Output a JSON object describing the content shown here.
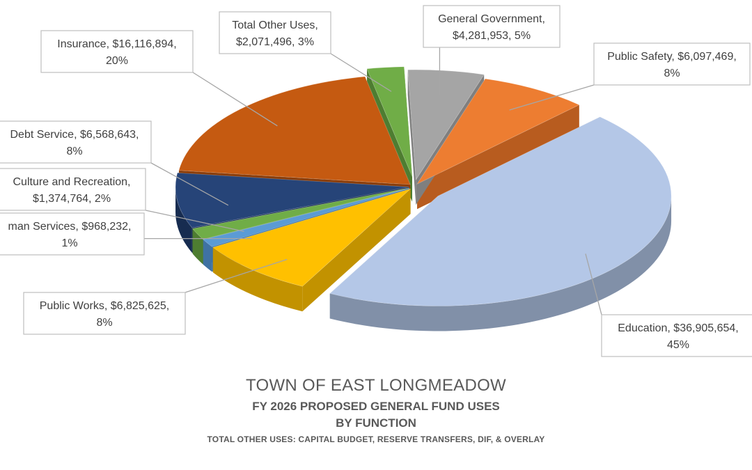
{
  "chart_data": {
    "type": "pie",
    "title": "TOWN OF EAST LONGMEADOW",
    "subtitle_line1": "FY 2026 PROPOSED GENERAL FUND USES",
    "subtitle_line2": "BY FUNCTION",
    "note": "TOTAL OTHER USES: CAPITAL BUDGET, RESERVE TRANSFERS, DIF, & OVERLAY",
    "style": "3d-exploded",
    "slices": [
      {
        "name": "General Government",
        "value": 4281953,
        "value_label": "$4,281,953",
        "percent_label": "5%",
        "line1": "General Government,",
        "line2": "$4,281,953, 5%",
        "color": "#a5a5a5",
        "side": "#7f7f7f"
      },
      {
        "name": "Public Safety",
        "value": 6097469,
        "value_label": "$6,097,469",
        "percent_label": "8%",
        "line1": "Public Safety, $6,097,469,",
        "line2": "8%",
        "color": "#ed7d31",
        "side": "#b85c1f"
      },
      {
        "name": "Education",
        "value": 36905654,
        "value_label": "$36,905,654",
        "percent_label": "45%",
        "line1": "Education, $36,905,654,",
        "line2": "45%",
        "color": "#b4c7e7",
        "side": "#8190a8"
      },
      {
        "name": "Public Works",
        "value": 6825625,
        "value_label": "$6,825,625",
        "percent_label": "8%",
        "line1": "Public Works, $6,825,625,",
        "line2": "8%",
        "color": "#ffc000",
        "side": "#c29200"
      },
      {
        "name": "Human Services",
        "value": 968232,
        "value_label": "$968,232",
        "percent_label": "1%",
        "line1": "man Services, $968,232,",
        "line2": "1%",
        "color": "#5b9bd5",
        "side": "#3f72a3"
      },
      {
        "name": "Culture and Recreation",
        "value": 1374764,
        "value_label": "$1,374,764",
        "percent_label": "2%",
        "line1": "Culture and Recreation,",
        "line2": "$1,374,764, 2%",
        "color": "#70ad47",
        "side": "#4e7d31"
      },
      {
        "name": "Debt Service",
        "value": 6568643,
        "value_label": "$6,568,643",
        "percent_label": "8%",
        "line1": "Debt Service, $6,568,643,",
        "line2": "8%",
        "color": "#264478",
        "side": "#172c50"
      },
      {
        "name": "Insurance",
        "value": 16116894,
        "value_label": "$16,116,894",
        "percent_label": "20%",
        "line1": "Insurance, $16,116,894,",
        "line2": "20%",
        "color": "#c55a11",
        "side": "#8a3d0a"
      },
      {
        "name": "Total Other Uses",
        "value": 2071496,
        "value_label": "$2,071,496",
        "percent_label": "3%",
        "line1": "Total Other Uses,",
        "line2": "$2,071,496, 3%",
        "color": "#70ad47",
        "side": "#4e7d31"
      }
    ]
  }
}
